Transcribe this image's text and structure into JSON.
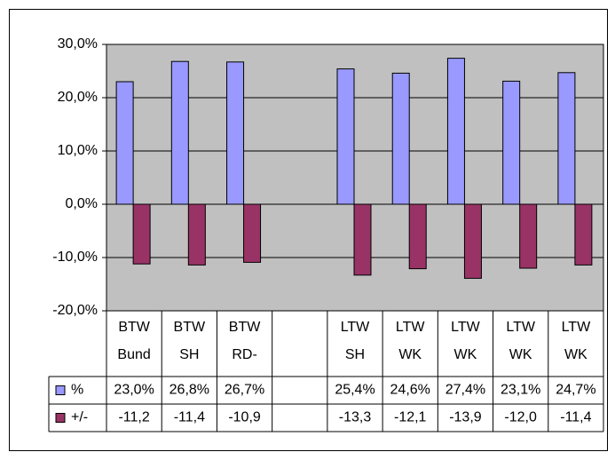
{
  "chart_data": {
    "type": "bar",
    "categories": [
      "BTW\nBund",
      "BTW\nSH",
      "BTW\nRD-",
      null,
      "LTW\nSH",
      "LTW\nWK",
      "LTW\nWK",
      "LTW\nWK",
      "LTW\nWK"
    ],
    "series": [
      {
        "name": "%",
        "color": "#9999ff",
        "values": [
          23.0,
          26.8,
          26.7,
          null,
          25.4,
          24.6,
          27.4,
          23.1,
          24.7
        ],
        "value_labels": [
          "23,0%",
          "26,8%",
          "26,7%",
          null,
          "25,4%",
          "24,6%",
          "27,4%",
          "23,1%",
          "24,7%"
        ]
      },
      {
        "name": "+/-",
        "color": "#993366",
        "values": [
          -11.2,
          -11.4,
          -10.9,
          null,
          -13.3,
          -12.1,
          -13.9,
          -12.0,
          -11.4
        ],
        "value_labels": [
          "-11,2",
          "-11,4",
          "-10,9",
          null,
          "-13,3",
          "-12,1",
          "-13,9",
          "-12,0",
          "-11,4"
        ]
      }
    ],
    "ylim": [
      -20,
      30
    ],
    "yticks": [
      {
        "value": -20,
        "label": "-20,0%"
      },
      {
        "value": -10,
        "label": "-10,0%"
      },
      {
        "value": 0,
        "label": "0,0%"
      },
      {
        "value": 10,
        "label": "10,0%"
      },
      {
        "value": 20,
        "label": "20,0%"
      },
      {
        "value": 30,
        "label": "30,0%"
      }
    ],
    "grid": true,
    "plot_background": "#c0c0c0"
  }
}
